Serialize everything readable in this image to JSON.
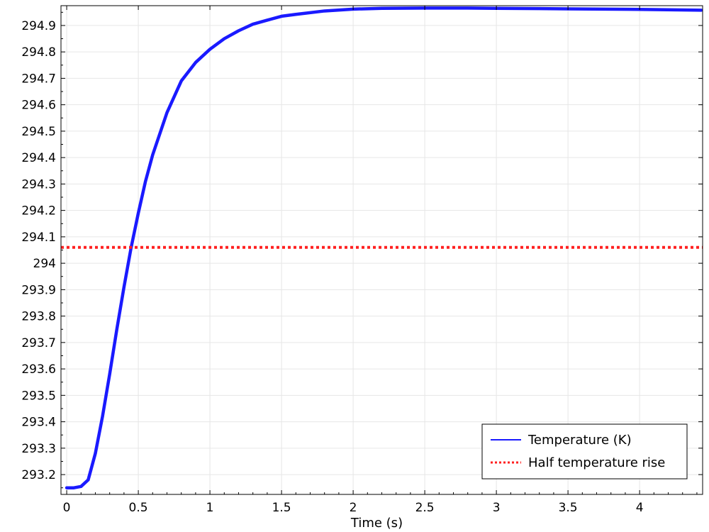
{
  "chart_data": {
    "type": "line",
    "title": "",
    "xlabel": "Time (s)",
    "ylabel": "",
    "xlim": [
      -0.04,
      4.44
    ],
    "ylim": [
      293.125,
      294.975
    ],
    "xticks": [
      0,
      0.5,
      1,
      1.5,
      2,
      2.5,
      3,
      3.5,
      4
    ],
    "xtick_labels": [
      "0",
      "0.5",
      "1",
      "1.5",
      "2",
      "2.5",
      "3",
      "3.5",
      "4"
    ],
    "yticks": [
      293.2,
      293.3,
      293.4,
      293.5,
      293.6,
      293.7,
      293.8,
      293.9,
      294.0,
      294.1,
      294.2,
      294.3,
      294.4,
      294.5,
      294.6,
      294.7,
      294.8,
      294.9
    ],
    "ytick_labels": [
      "293.2",
      "293.3",
      "293.4",
      "293.5",
      "293.6",
      "293.7",
      "293.8",
      "293.9",
      "294",
      "294.1",
      "294.2",
      "294.3",
      "294.4",
      "294.5",
      "294.6",
      "294.7",
      "294.8",
      "294.9"
    ],
    "grid": true,
    "legend_position": "bottom-right",
    "series": [
      {
        "name": "Temperature (K)",
        "color": "#1a1aff",
        "style": "solid",
        "x": [
          0,
          0.05,
          0.1,
          0.15,
          0.2,
          0.25,
          0.3,
          0.35,
          0.4,
          0.45,
          0.5,
          0.55,
          0.6,
          0.7,
          0.8,
          0.9,
          1.0,
          1.1,
          1.2,
          1.3,
          1.4,
          1.5,
          1.6,
          1.8,
          2.0,
          2.2,
          2.5,
          2.8,
          3.0,
          3.5,
          4.0,
          4.43
        ],
        "y": [
          293.15,
          293.15,
          293.155,
          293.18,
          293.28,
          293.42,
          293.58,
          293.75,
          293.91,
          294.06,
          294.19,
          294.31,
          294.41,
          294.57,
          294.69,
          294.76,
          294.81,
          294.85,
          294.88,
          294.905,
          294.92,
          294.935,
          294.942,
          294.955,
          294.962,
          294.965,
          294.966,
          294.966,
          294.965,
          294.963,
          294.961,
          294.958
        ]
      },
      {
        "name": "Half temperature rise",
        "color": "#ff2020",
        "style": "dotted",
        "x": [
          -0.04,
          4.44
        ],
        "y": [
          294.06,
          294.06
        ]
      }
    ]
  }
}
